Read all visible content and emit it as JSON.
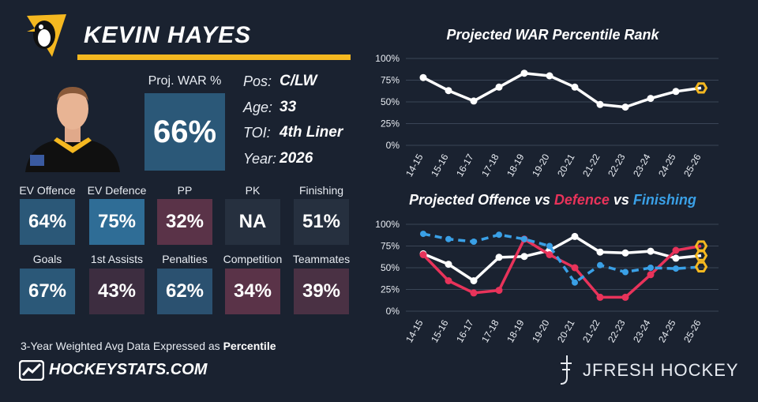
{
  "player": {
    "name": "KEVIN HAYES",
    "war_label": "Proj. WAR %",
    "war_value": "66%"
  },
  "info": [
    {
      "key": "Pos:",
      "value": "C/LW"
    },
    {
      "key": "Age:",
      "value": "33"
    },
    {
      "key": "TOI:",
      "value": "4th Liner"
    },
    {
      "key": "Year:",
      "value": "2026"
    }
  ],
  "stats": [
    {
      "label": "EV Offence",
      "value": "64%",
      "color": "#2b5878"
    },
    {
      "label": "EV Defence",
      "value": "75%",
      "color": "#2f6d96"
    },
    {
      "label": "PP",
      "value": "32%",
      "color": "#5a3348"
    },
    {
      "label": "PK",
      "value": "NA",
      "color": "#26303f"
    },
    {
      "label": "Finishing",
      "value": "51%",
      "color": "#26303f"
    },
    {
      "label": "Goals",
      "value": "67%",
      "color": "#2b5878"
    },
    {
      "label": "1st Assists",
      "value": "43%",
      "color": "#3d2d40"
    },
    {
      "label": "Penalties",
      "value": "62%",
      "color": "#2b5170"
    },
    {
      "label": "Competition",
      "value": "34%",
      "color": "#5a3348"
    },
    {
      "label": "Teammates",
      "value": "39%",
      "color": "#4a3144"
    }
  ],
  "footer": {
    "note_prefix": "3-Year Weighted Avg Data Expressed as ",
    "note_bold": "Percentile",
    "site": "HOCKEYSTATS.COM",
    "brand": "JFRESH HOCKEY"
  },
  "colors": {
    "background": "#1a2230",
    "accent_gold": "#f5b820",
    "offence": "#ffffff",
    "defence": "#e8335a",
    "finishing": "#3aa0e6",
    "projection_marker": "#f5b820"
  },
  "chart_data": [
    {
      "type": "line",
      "title": "Projected WAR Percentile Rank",
      "x": [
        "14-15",
        "15-16",
        "16-17",
        "17-18",
        "18-19",
        "19-20",
        "20-21",
        "21-22",
        "22-23",
        "23-24",
        "24-25",
        "25-26"
      ],
      "yticks": [
        "100%",
        "75%",
        "50%",
        "25%",
        "0%"
      ],
      "ylim": [
        0,
        100
      ],
      "grid": true,
      "series": [
        {
          "color": "#ffffff",
          "dashed": false,
          "values": [
            78,
            63,
            51,
            67,
            83,
            80,
            67,
            47,
            44,
            54,
            62,
            66
          ]
        }
      ]
    },
    {
      "type": "line",
      "title_parts": [
        {
          "text": "Projected Offence vs ",
          "color": "#ffffff"
        },
        {
          "text": "Defence",
          "color": "#e8335a"
        },
        {
          "text": " vs ",
          "color": "#ffffff"
        },
        {
          "text": "Finishing",
          "color": "#3aa0e6"
        }
      ],
      "x": [
        "14-15",
        "15-16",
        "16-17",
        "17-18",
        "18-19",
        "19-20",
        "20-21",
        "21-22",
        "22-23",
        "23-24",
        "24-25",
        "25-26"
      ],
      "yticks": [
        "100%",
        "75%",
        "50%",
        "25%",
        "0%"
      ],
      "ylim": [
        0,
        100
      ],
      "grid": true,
      "series": [
        {
          "name": "Offence",
          "color": "#ffffff",
          "dashed": false,
          "values": [
            66,
            54,
            35,
            62,
            63,
            70,
            86,
            68,
            67,
            69,
            61,
            64
          ]
        },
        {
          "name": "Defence",
          "color": "#e8335a",
          "dashed": false,
          "values": [
            65,
            35,
            21,
            24,
            83,
            65,
            50,
            16,
            16,
            42,
            70,
            75
          ]
        },
        {
          "name": "Finishing",
          "color": "#3aa0e6",
          "dashed": true,
          "values": [
            89,
            83,
            80,
            88,
            83,
            75,
            33,
            53,
            45,
            50,
            49,
            51
          ]
        }
      ]
    }
  ]
}
